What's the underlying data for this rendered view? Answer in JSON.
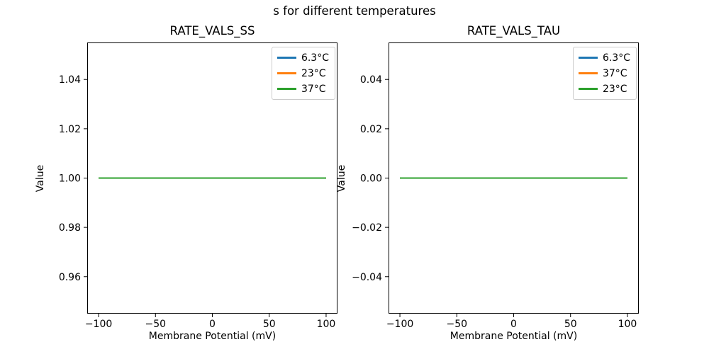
{
  "figure": {
    "suptitle": "s for different temperatures"
  },
  "chart_data": [
    {
      "type": "line",
      "title": "RATE_VALS_SS",
      "xlabel": "Membrane Potential (mV)",
      "ylabel": "Value",
      "xlim": [
        -110,
        110
      ],
      "ylim": [
        0.945,
        1.055
      ],
      "xticks": [
        -100,
        -50,
        0,
        50,
        100
      ],
      "xtick_labels": [
        "−100",
        "−50",
        "0",
        "50",
        "100"
      ],
      "yticks": [
        0.96,
        0.98,
        1.0,
        1.02,
        1.04
      ],
      "ytick_labels": [
        "0.96",
        "0.98",
        "1.00",
        "1.02",
        "1.04"
      ],
      "grid": false,
      "legend_position": "upper right",
      "series": [
        {
          "name": "6.3°C",
          "color": "#1f77b4",
          "x": [
            -100,
            100
          ],
          "y": [
            1.0,
            1.0
          ]
        },
        {
          "name": "23°C",
          "color": "#ff7f0e",
          "x": [
            -100,
            100
          ],
          "y": [
            1.0,
            1.0
          ]
        },
        {
          "name": "37°C",
          "color": "#2ca02c",
          "x": [
            -100,
            100
          ],
          "y": [
            1.0,
            1.0
          ]
        }
      ]
    },
    {
      "type": "line",
      "title": "RATE_VALS_TAU",
      "xlabel": "Membrane Potential (mV)",
      "ylabel": "Value",
      "xlim": [
        -110,
        110
      ],
      "ylim": [
        -0.055,
        0.055
      ],
      "xticks": [
        -100,
        -50,
        0,
        50,
        100
      ],
      "xtick_labels": [
        "−100",
        "−50",
        "0",
        "50",
        "100"
      ],
      "yticks": [
        -0.04,
        -0.02,
        0.0,
        0.02,
        0.04
      ],
      "ytick_labels": [
        "−0.04",
        "−0.02",
        "0.00",
        "0.02",
        "0.04"
      ],
      "grid": false,
      "legend_position": "upper right",
      "series": [
        {
          "name": "6.3°C",
          "color": "#1f77b4",
          "x": [
            -100,
            100
          ],
          "y": [
            0.0,
            0.0
          ]
        },
        {
          "name": "37°C",
          "color": "#ff7f0e",
          "x": [
            -100,
            100
          ],
          "y": [
            0.0,
            0.0
          ]
        },
        {
          "name": "23°C",
          "color": "#2ca02c",
          "x": [
            -100,
            100
          ],
          "y": [
            0.0,
            0.0
          ]
        }
      ]
    }
  ]
}
